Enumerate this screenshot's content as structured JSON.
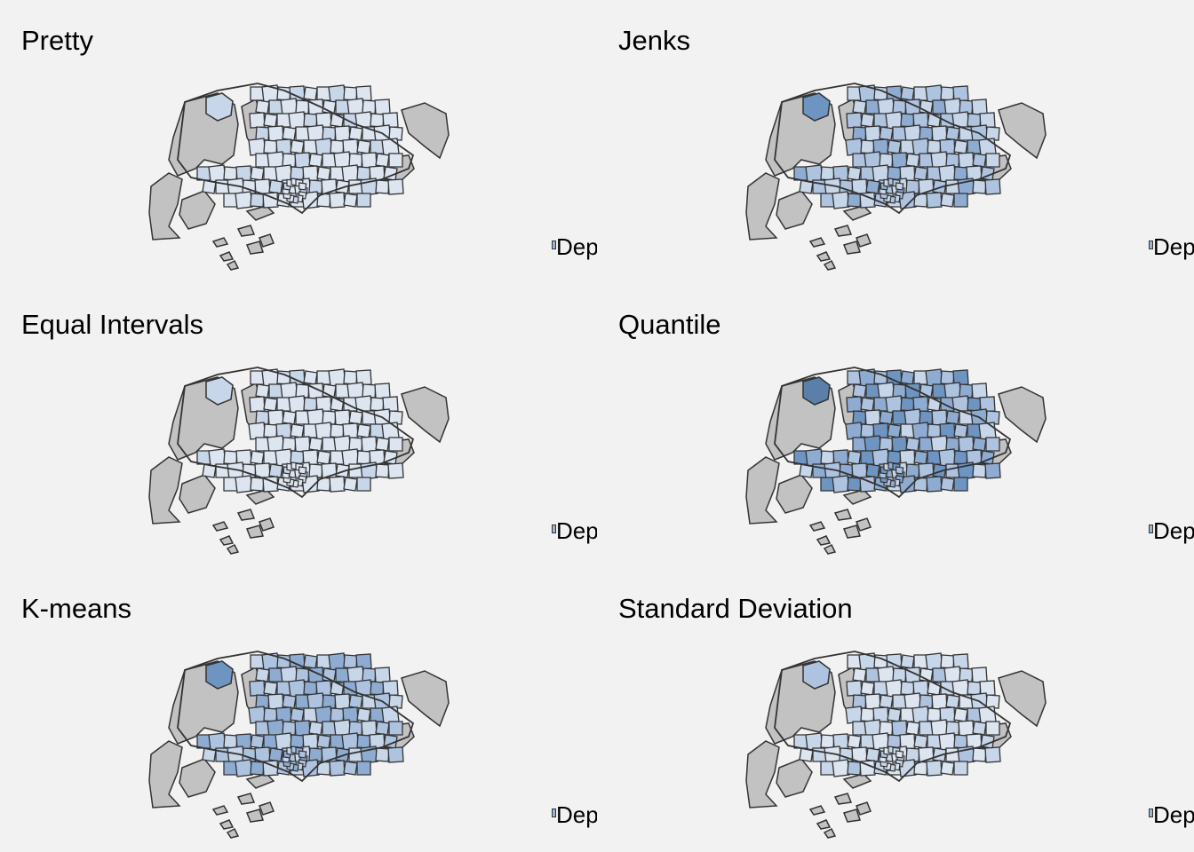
{
  "colors": {
    "background": "#f2f2f2",
    "missing": "#c2c2c2",
    "border": "#333333",
    "palette": [
      "#dde5f1",
      "#c8d6ea",
      "#aec3e0",
      "#8eacd2",
      "#6e95c2",
      "#5a7fa9"
    ]
  },
  "panels": [
    {
      "title": "Pretty",
      "legend_label": "Dep",
      "scheme": [
        0,
        0,
        0,
        1,
        0,
        0,
        1,
        0,
        0,
        0,
        1,
        0,
        0,
        0,
        0,
        1,
        0,
        0,
        0,
        0
      ],
      "northwest": 1
    },
    {
      "title": "Jenks",
      "legend_label": "Dep",
      "scheme": [
        1,
        2,
        1,
        3,
        2,
        1,
        2,
        1,
        2,
        1,
        3,
        1,
        2,
        2,
        1,
        3,
        1,
        2,
        1,
        2
      ],
      "northwest": 4
    },
    {
      "title": "Equal Intervals",
      "legend_label": "Dep",
      "scheme": [
        0,
        0,
        0,
        1,
        0,
        0,
        0,
        0,
        0,
        0,
        1,
        0,
        0,
        0,
        0,
        0,
        0,
        0,
        0,
        0
      ],
      "northwest": 1
    },
    {
      "title": "Quantile",
      "legend_label": "Dep",
      "scheme": [
        2,
        3,
        2,
        4,
        3,
        1,
        3,
        2,
        4,
        2,
        4,
        1,
        3,
        4,
        2,
        4,
        2,
        3,
        1,
        3
      ],
      "northwest": 5
    },
    {
      "title": "K-means",
      "legend_label": "Dep",
      "scheme": [
        1,
        2,
        2,
        3,
        2,
        1,
        3,
        2,
        3,
        1,
        3,
        1,
        2,
        3,
        2,
        3,
        1,
        2,
        1,
        2
      ],
      "northwest": 4
    },
    {
      "title": "Standard Deviation",
      "legend_label": "Dep",
      "scheme": [
        0,
        1,
        0,
        1,
        1,
        0,
        1,
        0,
        1,
        0,
        2,
        0,
        1,
        1,
        0,
        2,
        0,
        1,
        0,
        1
      ],
      "northwest": 2
    }
  ]
}
